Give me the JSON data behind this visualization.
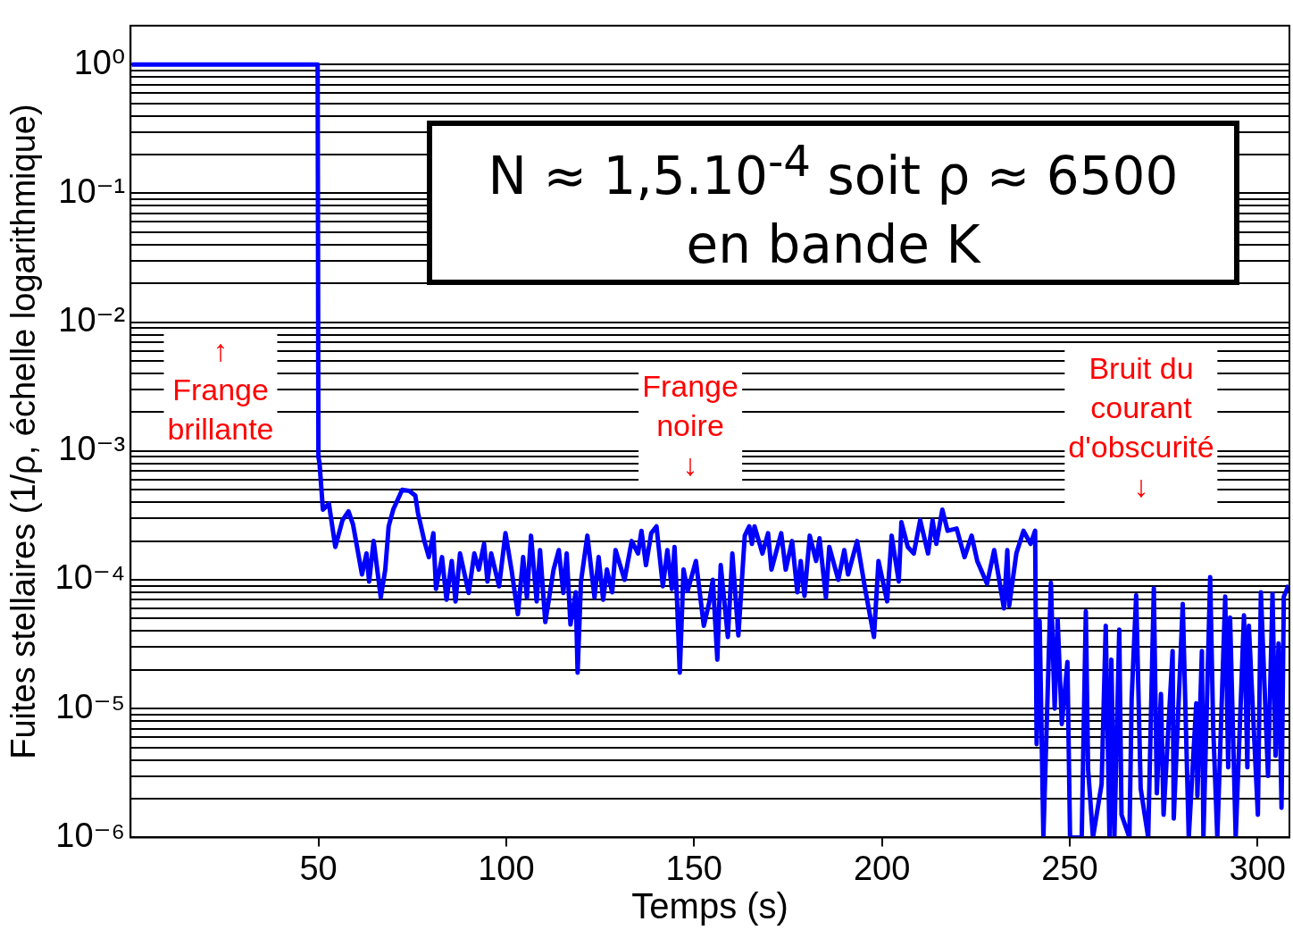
{
  "chart_data": {
    "type": "line",
    "xlabel": "Temps (s)",
    "ylabel": "Fuites stellaires (1/ρ, échelle logarithmique)",
    "annotations": [
      "N ≈ 1,5.10$^{-4}$ soit  ρ ≈ 6500",
      "en bande K",
      "↑\nFrange\nbrillante",
      "Frange\nnoire\n↓",
      "Bruit du\ncourant\nd'obscurité\n↓"
    ],
    "log": "y",
    "grid": "y",
    "legend": false,
    "line_style": "solid",
    "marker": "none",
    "xlim": [
      0,
      308.5
    ],
    "xticks": [
      50,
      100,
      150,
      200,
      250,
      300
    ],
    "ylim": [
      1e-06,
      2
    ],
    "yticks": [
      {
        "value": 1e-06,
        "label": "10⁻⁶"
      },
      {
        "value": 2e-06,
        "label": null
      },
      {
        "value": 3e-06,
        "label": null
      },
      {
        "value": 4e-06,
        "label": null
      },
      {
        "value": 5e-06,
        "label": null
      },
      {
        "value": 6e-06,
        "label": null
      },
      {
        "value": 7e-06,
        "label": null
      },
      {
        "value": 8e-06,
        "label": null
      },
      {
        "value": 9e-06,
        "label": null
      },
      {
        "value": 1e-05,
        "label": "10⁻⁵"
      },
      {
        "value": 2e-05,
        "label": null
      },
      {
        "value": 3e-05,
        "label": null
      },
      {
        "value": 4e-05,
        "label": null
      },
      {
        "value": 5e-05,
        "label": null
      },
      {
        "value": 6e-05,
        "label": null
      },
      {
        "value": 7e-05,
        "label": null
      },
      {
        "value": 8e-05,
        "label": null
      },
      {
        "value": 9e-05,
        "label": null
      },
      {
        "value": 0.0001,
        "label": "10⁻⁴"
      },
      {
        "value": 0.0002,
        "label": null
      },
      {
        "value": 0.0003,
        "label": null
      },
      {
        "value": 0.0004,
        "label": null
      },
      {
        "value": 0.0005,
        "label": null
      },
      {
        "value": 0.0006,
        "label": null
      },
      {
        "value": 0.0007,
        "label": null
      },
      {
        "value": 0.0008,
        "label": null
      },
      {
        "value": 0.0009,
        "label": null
      },
      {
        "value": 0.001,
        "label": "10⁻³"
      },
      {
        "value": 0.002,
        "label": null
      },
      {
        "value": 0.003,
        "label": null
      },
      {
        "value": 0.004,
        "label": null
      },
      {
        "value": 0.005,
        "label": null
      },
      {
        "value": 0.006,
        "label": null
      },
      {
        "value": 0.007,
        "label": null
      },
      {
        "value": 0.008,
        "label": null
      },
      {
        "value": 0.009,
        "label": null
      },
      {
        "value": 0.01,
        "label": "10⁻²"
      },
      {
        "value": 0.02,
        "label": null
      },
      {
        "value": 0.03,
        "label": null
      },
      {
        "value": 0.04,
        "label": null
      },
      {
        "value": 0.05,
        "label": null
      },
      {
        "value": 0.06,
        "label": null
      },
      {
        "value": 0.07,
        "label": null
      },
      {
        "value": 0.08,
        "label": null
      },
      {
        "value": 0.09,
        "label": null
      },
      {
        "value": 0.1,
        "label": "10⁻¹"
      },
      {
        "value": 0.2,
        "label": null
      },
      {
        "value": 0.3,
        "label": null
      },
      {
        "value": 0.4,
        "label": null
      },
      {
        "value": 0.5,
        "label": null
      },
      {
        "value": 0.6,
        "label": null
      },
      {
        "value": 0.7,
        "label": null
      },
      {
        "value": 0.8,
        "label": null
      },
      {
        "value": 0.9,
        "label": null
      },
      {
        "value": 1,
        "label": "10⁰"
      }
    ],
    "series": [
      {
        "color": "#0000ff",
        "x": [
          0.3,
          49.8,
          50.0,
          50.3,
          51.2,
          52.8,
          54.5,
          56.4,
          58.0,
          59.2,
          61.6,
          62.8,
          63.5,
          64.7,
          66.6,
          67.8,
          68.7,
          69.9,
          72.3,
          74.2,
          75.8,
          76.5,
          78.2,
          79.4,
          80.6,
          81.3,
          82.9,
          84.1,
          85.5,
          86.5,
          87.7,
          90.0,
          91.5,
          92.7,
          94.1,
          95.0,
          96.0,
          98.1,
          99.8,
          101.4,
          103.1,
          104.5,
          105.5,
          106.6,
          108.1,
          109.0,
          110.4,
          112.6,
          114.0,
          115.2,
          116.1,
          117.1,
          118.5,
          119.0,
          119.9,
          121.6,
          123.5,
          124.6,
          125.8,
          126.8,
          128.2,
          129.1,
          131.5,
          133.4,
          135.1,
          136.0,
          137.2,
          138.6,
          140.0,
          141.7,
          142.9,
          144.1,
          144.8,
          145.5,
          146.2,
          147.2,
          148.3,
          150.5,
          152.6,
          154.0,
          155.0,
          156.2,
          157.1,
          159.0,
          160.2,
          161.8,
          163.5,
          164.7,
          165.4,
          166.1,
          168.2,
          169.7,
          170.6,
          173.2,
          174.4,
          176.1,
          177.5,
          178.4,
          179.4,
          180.8,
          182.5,
          183.4,
          185.1,
          186.0,
          188.4,
          190.0,
          191.0,
          193.4,
          195.7,
          197.9,
          199.1,
          201.4,
          202.6,
          204.5,
          205.2,
          206.9,
          208.5,
          210.2,
          212.3,
          213.5,
          214.5,
          216.1,
          217.5,
          219.9,
          222.0,
          223.9,
          225.4,
          228.0,
          229.9,
          232.5,
          233.4,
          233.9,
          235.8,
          237.7,
          239.6,
          240.8,
          241.2,
          242.0,
          243.0,
          245.0,
          246.0,
          246.8,
          247.9,
          249.4,
          250.1,
          253.2,
          254.3,
          254.9,
          256.2,
          258.5,
          259.6,
          260.6,
          261.1,
          261.9,
          263.2,
          263.8,
          265.9,
          266.5,
          267.7,
          268.9,
          270.9,
          272.4,
          273.2,
          274.3,
          275.0,
          277.4,
          277.7,
          280.1,
          281.7,
          283.7,
          284.0,
          285.2,
          285.6,
          287.4,
          288.2,
          289.3,
          291.4,
          292.2,
          292.7,
          294.2,
          296.4,
          297.3,
          297.7,
          300.1,
          300.9,
          302.8,
          304.0,
          304.8,
          305.6,
          306.4,
          307.0,
          308.3
        ],
        "values": [
          1,
          1,
          0.0009,
          0.0008,
          0.00035,
          0.00039,
          0.00018,
          0.00029,
          0.00034,
          0.00027,
          0.00011,
          0.00016,
          9.7e-05,
          0.0002,
          7.3e-05,
          0.00012,
          0.00026,
          0.00035,
          0.0005,
          0.00049,
          0.00045,
          0.00033,
          0.0002,
          0.00015,
          0.00023,
          8.5e-05,
          0.00015,
          7e-05,
          0.00014,
          6.8e-05,
          0.00016,
          7.9e-05,
          0.00016,
          0.00012,
          0.00019,
          9.7e-05,
          0.00016,
          8.9e-05,
          0.00023,
          0.00012,
          5.4e-05,
          0.00015,
          7.3e-05,
          0.00022,
          6.8e-05,
          0.00017,
          4.7e-05,
          0.00012,
          0.00017,
          7.9e-05,
          0.00016,
          4.5e-05,
          8e-05,
          1.9e-05,
          9.7e-05,
          0.00022,
          7.3e-05,
          0.00015,
          7e-05,
          0.00012,
          8e-05,
          0.00017,
          0.0001,
          0.0002,
          0.00016,
          0.00024,
          0.00013,
          0.00023,
          0.00026,
          8.9e-05,
          0.00017,
          8.5e-05,
          0.00018,
          6.6e-05,
          1.9e-05,
          0.00012,
          8.2e-05,
          0.00014,
          4.4e-05,
          6.6e-05,
          0.0001,
          2.4e-05,
          0.00013,
          3.6e-05,
          0.00016,
          3.7e-05,
          0.00022,
          0.00026,
          0.00019,
          0.00026,
          0.00016,
          0.00023,
          0.00012,
          0.00023,
          0.00012,
          0.0002,
          8e-05,
          0.00014,
          7.5e-05,
          0.00022,
          0.00014,
          0.00021,
          7.3e-05,
          0.00018,
          0.0001,
          0.00017,
          0.00011,
          0.0002,
          8e-05,
          3.6e-05,
          0.00014,
          6.8e-05,
          0.00022,
          9.7e-05,
          0.00028,
          0.00018,
          0.00016,
          0.00029,
          0.00016,
          0.00029,
          0.00019,
          0.00035,
          0.00024,
          0.00025,
          0.00015,
          0.00022,
          0.00014,
          9.3e-05,
          0.00017,
          6e-05,
          0.00017,
          6.3e-05,
          0.00016,
          0.00024,
          0.00019,
          0.00024,
          5.3e-06,
          4.8e-05,
          1e-06,
          9.5e-05,
          1e-05,
          4.9e-05,
          7.6e-06,
          2.3e-05,
          1e-06,
          1e-06,
          5.7e-05,
          3.4e-06,
          1e-06,
          2.6e-06,
          4.4e-05,
          1e-06,
          2.4e-05,
          1e-06,
          4.1e-05,
          1.5e-06,
          1e-06,
          1.2e-05,
          7.6e-05,
          2.4e-06,
          1e-06,
          8.6e-05,
          2.2e-06,
          1.3e-05,
          1.5e-06,
          2.8e-05,
          1.4e-06,
          6.5e-05,
          1e-06,
          1.1e-05,
          2.1e-06,
          2.8e-05,
          1e-06,
          0.000105,
          7.2e-06,
          1e-06,
          7.4e-05,
          3.5e-06,
          5.1e-05,
          1e-06,
          5.3e-05,
          3.5e-06,
          4.4e-05,
          1.5e-06,
          8e-05,
          3e-06,
          7.8e-05,
          4.3e-06,
          3.2e-05,
          1.7e-06,
          7.4e-05,
          9.1e-05
        ]
      }
    ]
  }
}
